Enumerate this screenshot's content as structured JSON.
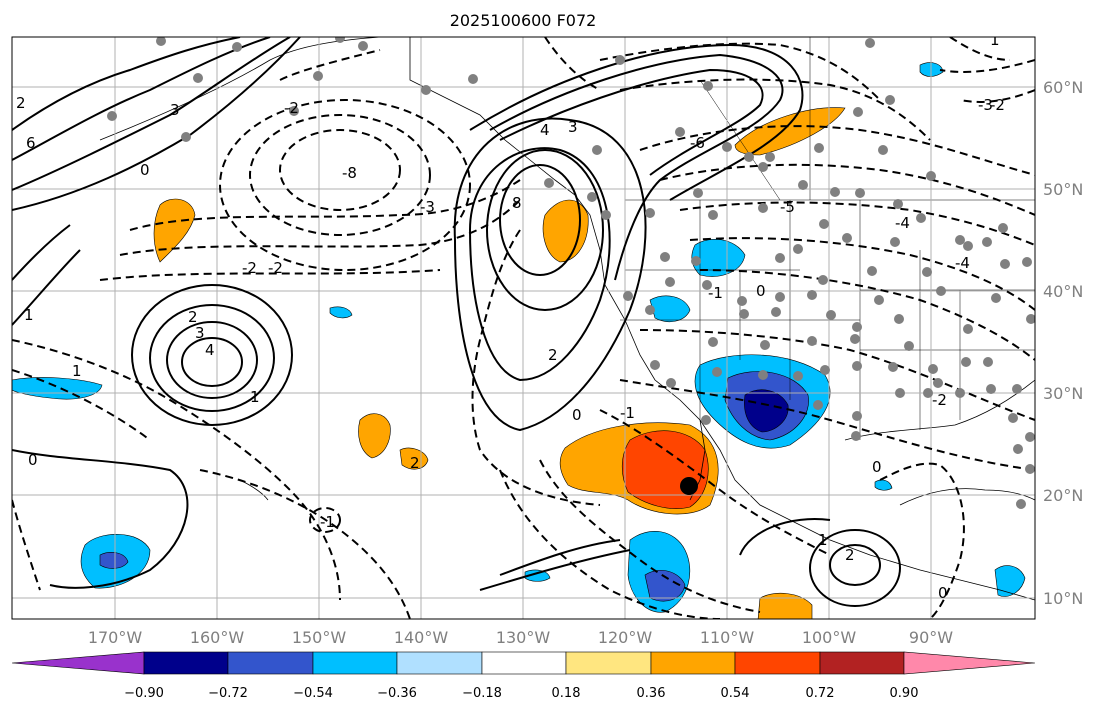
{
  "title": "2025100600 F072",
  "lon_labels": [
    "170°W",
    "160°W",
    "150°W",
    "140°W",
    "130°W",
    "120°W",
    "110°W",
    "100°W",
    "90°W"
  ],
  "lat_labels": [
    "60°N",
    "50°N",
    "40°N",
    "30°N",
    "20°N",
    "10°N"
  ],
  "colorbar": {
    "tick_labels": [
      "−0.90",
      "−0.72",
      "−0.54",
      "−0.36",
      "−0.18",
      "0.18",
      "0.36",
      "0.54",
      "0.72",
      "0.90"
    ],
    "colors": [
      "#9932cc",
      "#00008b",
      "#3355cc",
      "#00bfff",
      "#b0e0ff",
      "#ffffff",
      "#ffe680",
      "#ffa500",
      "#ff4500",
      "#b22222",
      "#ff88aa"
    ]
  },
  "contour_labels": [
    "6",
    "4",
    "3",
    "2",
    "1",
    "0",
    "-1",
    "-2",
    "-3",
    "-8",
    "8",
    "-6",
    "-5",
    "-4",
    "4",
    "2",
    "3",
    "2",
    "1",
    "-2",
    "-1",
    "0",
    "0",
    "0",
    "-1",
    "-2",
    "0",
    "1",
    "2",
    "3",
    "1",
    "2",
    "-2",
    "-2",
    "-3",
    "-4",
    "0",
    "1"
  ],
  "colors": {
    "grid": "#b0b0b0",
    "tick_label": "#808080",
    "station": "#808080",
    "storm_marker": "#000000"
  }
}
